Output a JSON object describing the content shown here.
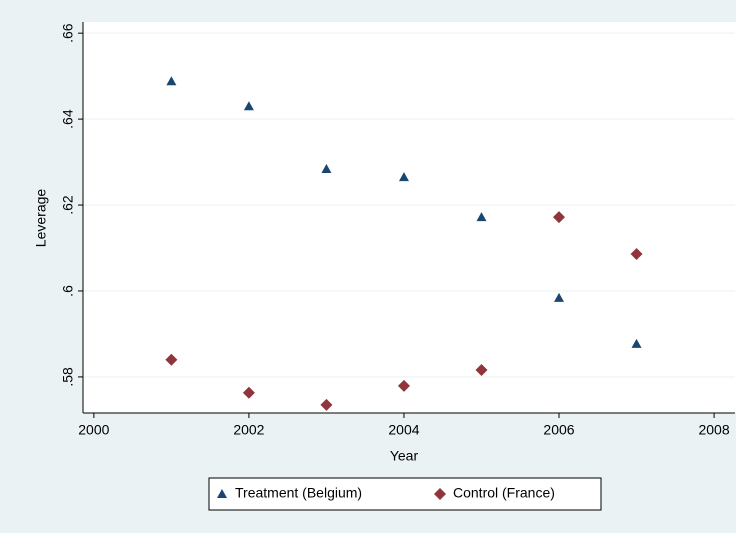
{
  "chart_data": {
    "type": "scatter",
    "x_label": "Year",
    "y_label": "Leverage",
    "xlim": [
      1999.86,
      2008.27
    ],
    "ylim": [
      0.5716,
      0.6626
    ],
    "xticks": [
      2000,
      2002,
      2004,
      2006,
      2008
    ],
    "yticks": [
      {
        "value": 0.58,
        "label": ".58"
      },
      {
        "value": 0.6,
        "label": ".6"
      },
      {
        "value": 0.62,
        "label": ".62"
      },
      {
        "value": 0.64,
        "label": ".64"
      },
      {
        "value": 0.66,
        "label": ".66"
      }
    ],
    "grid": true,
    "legend": "bottom",
    "x": [
      2001,
      2002,
      2003,
      2004,
      2005,
      2006,
      2007
    ],
    "series": [
      {
        "name": "Treatment (Belgium)",
        "color": "#1a476f",
        "marker": "triangle",
        "values": [
          0.6488,
          0.643,
          0.6284,
          0.6265,
          0.6172,
          0.5984,
          0.5877
        ]
      },
      {
        "name": "Control (France)",
        "color": "#90353b",
        "marker": "diamond",
        "values": [
          0.584,
          0.5763,
          0.5735,
          0.5779,
          0.5816,
          0.6172,
          0.6086
        ]
      }
    ]
  }
}
